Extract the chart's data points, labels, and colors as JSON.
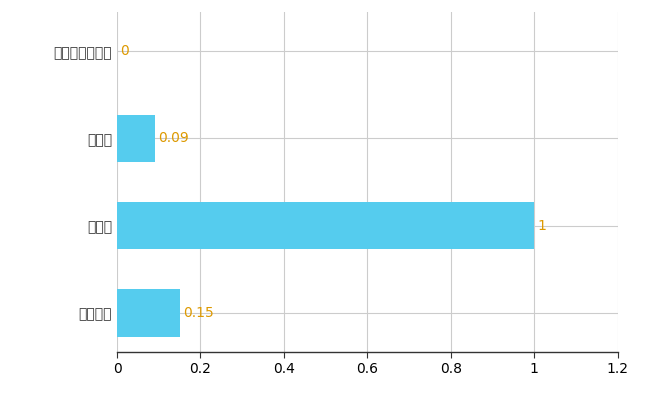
{
  "categories": [
    "全国平均",
    "県最大",
    "県平均",
    "つくばみらい市"
  ],
  "values": [
    0.15,
    1.0,
    0.09,
    0.0
  ],
  "bar_color": "#55ccee",
  "value_label_color": "#dd9900",
  "background_color": "#ffffff",
  "grid_color": "#cccccc",
  "xlim": [
    0,
    1.2
  ],
  "xticks": [
    0,
    0.2,
    0.4,
    0.6,
    0.8,
    1.0,
    1.2
  ],
  "xtick_labels": [
    "0",
    "0.2",
    "0.4",
    "0.6",
    "0.8",
    "1",
    "1.2"
  ],
  "bar_height": 0.55,
  "value_labels": [
    "0.15",
    "1",
    "0.09",
    "0"
  ],
  "ylabel_fontsize": 10,
  "xlabel_fontsize": 10,
  "value_fontsize": 10,
  "spine_bottom_color": "#333333",
  "ytick_label_color": "#333333"
}
